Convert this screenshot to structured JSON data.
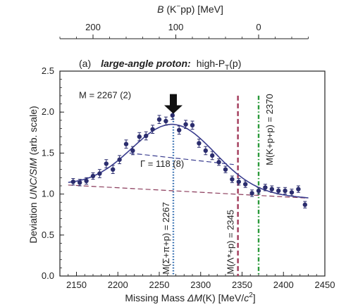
{
  "chart_data": {
    "type": "scatter",
    "panel_label": "(a)",
    "title_bold": "large-angle proton:",
    "title_rest": "high-P",
    "title_sub": "T",
    "title_tail": "(p)",
    "xlabel_pre": "Missing Mass ",
    "xlabel_var": "ΔM",
    "xlabel_post": "(K)  [MeV/",
    "xlabel_c": "c",
    "xlabel_exp": "2",
    "xlabel_end": "]",
    "ylabel_pre": "Deviation ",
    "ylabel_var": "UNC/SIM",
    "ylabel_post": " (arb. scale)",
    "top_axis_label_var": "B",
    "top_axis_label_rest": " (K",
    "top_axis_label_sup": "−",
    "top_axis_label_tail": "pp)   [MeV]",
    "xlim": [
      2130,
      2450
    ],
    "ylim": [
      0,
      2.5
    ],
    "xticks": [
      2150,
      2200,
      2250,
      2300,
      2350,
      2400,
      2450
    ],
    "yticks": [
      0,
      0.5,
      1.0,
      1.5,
      2.0,
      2.5
    ],
    "top_axis": {
      "reference_mass": 2370,
      "ticks": [
        200,
        100,
        0
      ],
      "minor_step": 20,
      "range": [
        -60,
        240
      ]
    },
    "points": [
      {
        "x": 2146,
        "y": 1.15,
        "err": 0.04
      },
      {
        "x": 2154,
        "y": 1.14,
        "err": 0.04
      },
      {
        "x": 2162,
        "y": 1.16,
        "err": 0.04
      },
      {
        "x": 2170,
        "y": 1.22,
        "err": 0.04
      },
      {
        "x": 2178,
        "y": 1.25,
        "err": 0.05
      },
      {
        "x": 2186,
        "y": 1.37,
        "err": 0.05
      },
      {
        "x": 2194,
        "y": 1.3,
        "err": 0.05
      },
      {
        "x": 2202,
        "y": 1.42,
        "err": 0.05
      },
      {
        "x": 2210,
        "y": 1.61,
        "err": 0.05
      },
      {
        "x": 2218,
        "y": 1.53,
        "err": 0.05
      },
      {
        "x": 2226,
        "y": 1.7,
        "err": 0.05
      },
      {
        "x": 2234,
        "y": 1.71,
        "err": 0.05
      },
      {
        "x": 2242,
        "y": 1.79,
        "err": 0.05
      },
      {
        "x": 2250,
        "y": 1.91,
        "err": 0.05
      },
      {
        "x": 2258,
        "y": 1.89,
        "err": 0.05
      },
      {
        "x": 2266,
        "y": 1.96,
        "err": 0.05
      },
      {
        "x": 2274,
        "y": 1.78,
        "err": 0.05
      },
      {
        "x": 2282,
        "y": 1.85,
        "err": 0.05
      },
      {
        "x": 2290,
        "y": 1.84,
        "err": 0.05
      },
      {
        "x": 2298,
        "y": 1.62,
        "err": 0.05
      },
      {
        "x": 2306,
        "y": 1.53,
        "err": 0.05
      },
      {
        "x": 2314,
        "y": 1.47,
        "err": 0.05
      },
      {
        "x": 2322,
        "y": 1.39,
        "err": 0.04
      },
      {
        "x": 2330,
        "y": 1.3,
        "err": 0.04
      },
      {
        "x": 2338,
        "y": 1.18,
        "err": 0.04
      },
      {
        "x": 2346,
        "y": 1.15,
        "err": 0.04
      },
      {
        "x": 2354,
        "y": 1.12,
        "err": 0.04
      },
      {
        "x": 2362,
        "y": 1.01,
        "err": 0.04
      },
      {
        "x": 2370,
        "y": 1.04,
        "err": 0.04
      },
      {
        "x": 2378,
        "y": 1.08,
        "err": 0.04
      },
      {
        "x": 2386,
        "y": 1.06,
        "err": 0.04
      },
      {
        "x": 2394,
        "y": 1.04,
        "err": 0.04
      },
      {
        "x": 2402,
        "y": 1.04,
        "err": 0.04
      },
      {
        "x": 2410,
        "y": 1.02,
        "err": 0.04
      },
      {
        "x": 2418,
        "y": 1.06,
        "err": 0.04
      },
      {
        "x": 2426,
        "y": 0.87,
        "err": 0.04
      }
    ],
    "background_line": {
      "x": [
        2140,
        2430
      ],
      "y": [
        1.11,
        0.95
      ]
    },
    "peak_base_line": {
      "x": [
        2214,
        2340
      ],
      "y": [
        1.5,
        1.36
      ]
    },
    "fit_curve": {
      "mass": 2267,
      "gamma": 118,
      "amplitude": 0.81
    },
    "vertical_lines": [
      {
        "x": 2267,
        "color": "#1f5fa8",
        "style": "dotted",
        "label": "M(Σ+π+p) = 2267"
      },
      {
        "x": 2345,
        "color": "#a23a5a",
        "style": "dashed",
        "label": "M(Λ*+p) = 2345"
      },
      {
        "x": 2370,
        "color": "#2a9a3a",
        "style": "dashdot",
        "label": "M(K+p+p) = 2370"
      }
    ],
    "annotations": {
      "mass_label": "M = 2267 (2)",
      "width_label": "Γ = 118 (8)"
    },
    "colors": {
      "points": "#2b2d6e",
      "fit": "#3a3d8f",
      "background": "#8a3a5a",
      "peak_base": "#3a3d8f"
    }
  }
}
